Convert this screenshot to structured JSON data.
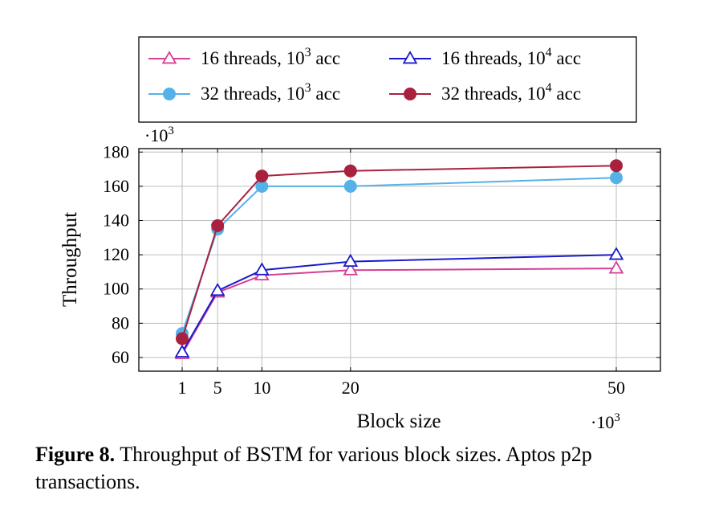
{
  "chart_data": {
    "type": "line",
    "x": [
      1,
      5,
      10,
      20,
      50
    ],
    "x_tick_labels": [
      "1",
      "5",
      "10",
      "20",
      "50"
    ],
    "x_multiplier": "·10",
    "x_multiplier_exp": "3",
    "xlabel": "Block size",
    "ylabel": "Throughput",
    "y_multiplier": "·10",
    "y_multiplier_exp": "3",
    "ylim": [
      52,
      182
    ],
    "y_ticks": [
      60,
      80,
      100,
      120,
      140,
      160,
      180
    ],
    "grid": true,
    "legend_placement": "top",
    "series": [
      {
        "label_pre": "16 threads, 10",
        "label_exp": "3",
        "label_post": " acc",
        "color": "#d63f95",
        "marker": "open-triangle",
        "values": [
          62,
          98,
          108,
          111,
          112
        ]
      },
      {
        "label_pre": "16 threads, 10",
        "label_exp": "4",
        "label_post": " acc",
        "color": "#1a1acc",
        "marker": "open-triangle",
        "values": [
          63,
          99,
          111,
          116,
          120
        ]
      },
      {
        "label_pre": "32 threads, 10",
        "label_exp": "3",
        "label_post": " acc",
        "color": "#56b1e8",
        "marker": "filled-circle",
        "values": [
          74,
          135,
          160,
          160,
          165
        ]
      },
      {
        "label_pre": "32 threads, 10",
        "label_exp": "4",
        "label_post": " acc",
        "color": "#a8213f",
        "marker": "filled-circle",
        "values": [
          71,
          137,
          166,
          169,
          172
        ]
      }
    ]
  },
  "caption": {
    "label": "Figure 8.",
    "text": " Throughput of BSTM for various block sizes. Aptos p2p transactions."
  }
}
